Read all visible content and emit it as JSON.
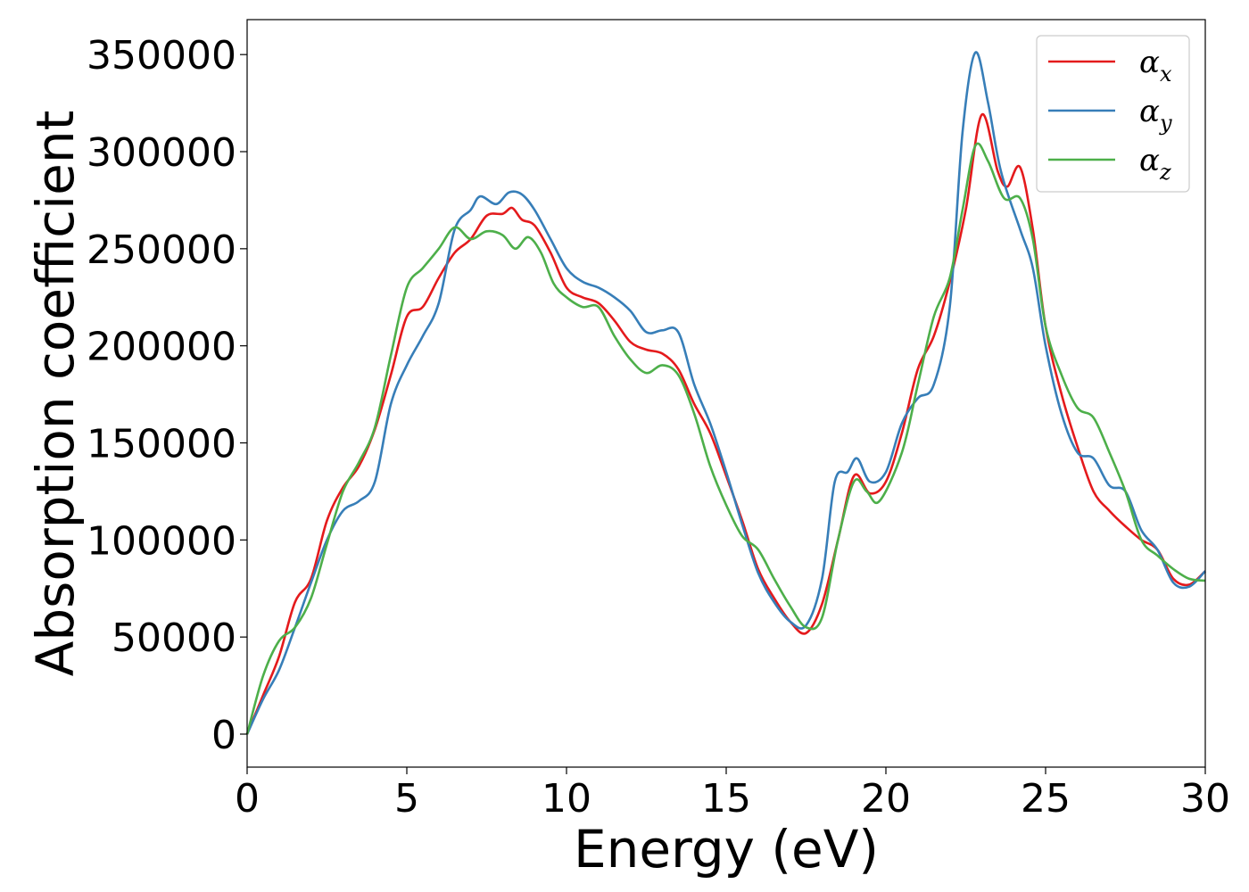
{
  "chart_data": {
    "type": "line",
    "xlabel": "Energy (eV)",
    "ylabel": "Absorption coefficient",
    "xlim": [
      0,
      30
    ],
    "ylim": [
      -17000,
      368000
    ],
    "xticks": [
      0,
      5,
      10,
      15,
      20,
      25,
      30
    ],
    "yticks": [
      0,
      50000,
      100000,
      150000,
      200000,
      250000,
      300000,
      350000
    ],
    "grid": false,
    "legend_position": "top-right",
    "series": [
      {
        "name": "α",
        "subscript": "x",
        "color": "#e41a1c",
        "points": [
          [
            0,
            0
          ],
          [
            0.5,
            20000
          ],
          [
            1,
            40000
          ],
          [
            1.5,
            68000
          ],
          [
            2,
            80000
          ],
          [
            2.5,
            110000
          ],
          [
            3,
            127000
          ],
          [
            3.5,
            138000
          ],
          [
            4,
            157000
          ],
          [
            4.5,
            185000
          ],
          [
            5,
            215000
          ],
          [
            5.5,
            220000
          ],
          [
            6,
            235000
          ],
          [
            6.5,
            248000
          ],
          [
            7,
            255000
          ],
          [
            7.5,
            267000
          ],
          [
            8,
            268000
          ],
          [
            8.3,
            271000
          ],
          [
            8.6,
            265000
          ],
          [
            9,
            262000
          ],
          [
            9.5,
            248000
          ],
          [
            10,
            230000
          ],
          [
            10.5,
            225000
          ],
          [
            11,
            222000
          ],
          [
            11.5,
            213000
          ],
          [
            12,
            202000
          ],
          [
            12.5,
            198000
          ],
          [
            13,
            196000
          ],
          [
            13.5,
            188000
          ],
          [
            14,
            170000
          ],
          [
            14.5,
            155000
          ],
          [
            15,
            133000
          ],
          [
            15.5,
            110000
          ],
          [
            16,
            85000
          ],
          [
            16.5,
            70000
          ],
          [
            17,
            58000
          ],
          [
            17.5,
            52000
          ],
          [
            18,
            67000
          ],
          [
            18.5,
            100000
          ],
          [
            19,
            133000
          ],
          [
            19.5,
            124000
          ],
          [
            20,
            130000
          ],
          [
            20.5,
            155000
          ],
          [
            21,
            188000
          ],
          [
            21.5,
            205000
          ],
          [
            22,
            233000
          ],
          [
            22.5,
            270000
          ],
          [
            23,
            319000
          ],
          [
            23.5,
            290000
          ],
          [
            23.8,
            282000
          ],
          [
            24.2,
            292000
          ],
          [
            24.6,
            260000
          ],
          [
            25,
            210000
          ],
          [
            25.5,
            175000
          ],
          [
            26,
            148000
          ],
          [
            26.5,
            125000
          ],
          [
            27,
            115000
          ],
          [
            27.5,
            107000
          ],
          [
            28,
            100000
          ],
          [
            28.5,
            95000
          ],
          [
            29,
            80000
          ],
          [
            29.5,
            77000
          ],
          [
            30,
            84000
          ]
        ]
      },
      {
        "name": "α",
        "subscript": "y",
        "color": "#377eb8",
        "points": [
          [
            0,
            0
          ],
          [
            0.5,
            18000
          ],
          [
            1,
            33000
          ],
          [
            1.5,
            55000
          ],
          [
            2,
            78000
          ],
          [
            2.5,
            100000
          ],
          [
            3,
            115000
          ],
          [
            3.5,
            120000
          ],
          [
            4,
            130000
          ],
          [
            4.5,
            170000
          ],
          [
            5,
            190000
          ],
          [
            5.5,
            205000
          ],
          [
            6,
            222000
          ],
          [
            6.5,
            260000
          ],
          [
            7,
            270000
          ],
          [
            7.3,
            277000
          ],
          [
            7.8,
            273000
          ],
          [
            8.2,
            279000
          ],
          [
            8.6,
            278000
          ],
          [
            9,
            270000
          ],
          [
            9.5,
            255000
          ],
          [
            10,
            240000
          ],
          [
            10.5,
            233000
          ],
          [
            11,
            230000
          ],
          [
            11.5,
            225000
          ],
          [
            12,
            218000
          ],
          [
            12.5,
            207000
          ],
          [
            13,
            208000
          ],
          [
            13.5,
            207000
          ],
          [
            14,
            180000
          ],
          [
            14.5,
            160000
          ],
          [
            15,
            135000
          ],
          [
            15.5,
            108000
          ],
          [
            16,
            83000
          ],
          [
            16.5,
            68000
          ],
          [
            17,
            58000
          ],
          [
            17.5,
            56000
          ],
          [
            18,
            80000
          ],
          [
            18.4,
            130000
          ],
          [
            18.8,
            135000
          ],
          [
            19.1,
            142000
          ],
          [
            19.5,
            130000
          ],
          [
            20,
            135000
          ],
          [
            20.5,
            160000
          ],
          [
            21,
            173000
          ],
          [
            21.5,
            180000
          ],
          [
            22,
            220000
          ],
          [
            22.4,
            310000
          ],
          [
            22.8,
            351000
          ],
          [
            23.2,
            325000
          ],
          [
            23.6,
            290000
          ],
          [
            24.2,
            260000
          ],
          [
            24.6,
            240000
          ],
          [
            25,
            200000
          ],
          [
            25.5,
            165000
          ],
          [
            26,
            145000
          ],
          [
            26.5,
            142000
          ],
          [
            27,
            128000
          ],
          [
            27.5,
            125000
          ],
          [
            28,
            105000
          ],
          [
            28.5,
            95000
          ],
          [
            29,
            78000
          ],
          [
            29.5,
            76000
          ],
          [
            30,
            84000
          ]
        ]
      },
      {
        "name": "α",
        "subscript": "z",
        "color": "#4daf4a",
        "points": [
          [
            0,
            0
          ],
          [
            0.5,
            30000
          ],
          [
            1,
            48000
          ],
          [
            1.5,
            55000
          ],
          [
            2,
            70000
          ],
          [
            2.5,
            98000
          ],
          [
            3,
            125000
          ],
          [
            3.5,
            140000
          ],
          [
            4,
            158000
          ],
          [
            4.5,
            195000
          ],
          [
            5,
            230000
          ],
          [
            5.5,
            240000
          ],
          [
            6,
            250000
          ],
          [
            6.5,
            261000
          ],
          [
            7,
            255000
          ],
          [
            7.5,
            259000
          ],
          [
            8,
            257000
          ],
          [
            8.4,
            250000
          ],
          [
            8.8,
            256000
          ],
          [
            9.2,
            248000
          ],
          [
            9.6,
            232000
          ],
          [
            10,
            225000
          ],
          [
            10.5,
            220000
          ],
          [
            11,
            220000
          ],
          [
            11.5,
            205000
          ],
          [
            12,
            193000
          ],
          [
            12.5,
            186000
          ],
          [
            13,
            190000
          ],
          [
            13.5,
            185000
          ],
          [
            14,
            165000
          ],
          [
            14.5,
            138000
          ],
          [
            15,
            118000
          ],
          [
            15.5,
            102000
          ],
          [
            16,
            95000
          ],
          [
            16.5,
            80000
          ],
          [
            17,
            66000
          ],
          [
            17.5,
            55000
          ],
          [
            18,
            60000
          ],
          [
            18.5,
            100000
          ],
          [
            19,
            130000
          ],
          [
            19.4,
            125000
          ],
          [
            19.8,
            120000
          ],
          [
            20.5,
            145000
          ],
          [
            21,
            180000
          ],
          [
            21.5,
            215000
          ],
          [
            22,
            235000
          ],
          [
            22.4,
            270000
          ],
          [
            22.8,
            303000
          ],
          [
            23.2,
            295000
          ],
          [
            23.7,
            276000
          ],
          [
            24.2,
            276000
          ],
          [
            24.6,
            255000
          ],
          [
            25,
            210000
          ],
          [
            25.5,
            185000
          ],
          [
            26,
            168000
          ],
          [
            26.5,
            163000
          ],
          [
            27,
            145000
          ],
          [
            27.5,
            125000
          ],
          [
            28,
            100000
          ],
          [
            28.5,
            92000
          ],
          [
            29,
            85000
          ],
          [
            29.5,
            80000
          ],
          [
            30,
            79000
          ]
        ]
      }
    ]
  }
}
